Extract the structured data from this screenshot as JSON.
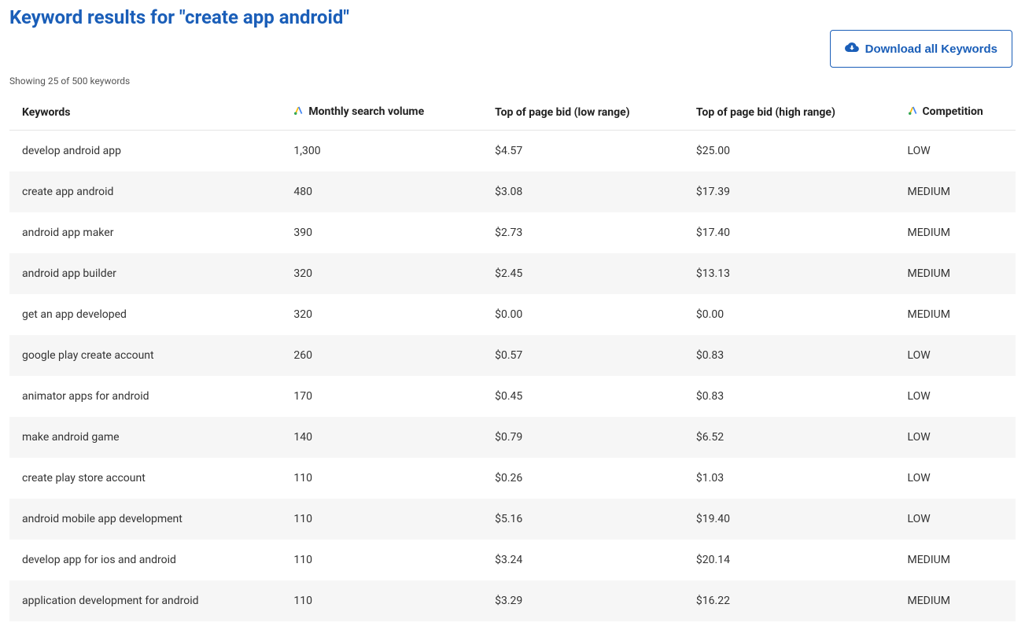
{
  "colors": {
    "primary": "#1a5eb8",
    "text": "#333333",
    "muted": "#555555",
    "row_alt_bg": "#f6f6f6",
    "border": "#e5e5e5",
    "ads_blue": "#4285f4",
    "ads_yellow": "#fbbc05",
    "ads_green": "#34a853"
  },
  "header": {
    "title": "Keyword results for \"create app android\"",
    "download_label": "Download all Keywords"
  },
  "summary": {
    "showing_text": "Showing 25 of 500 keywords"
  },
  "table": {
    "columns": {
      "keywords": "Keywords",
      "volume": "Monthly search volume",
      "low_bid": "Top of page bid (low range)",
      "high_bid": "Top of page bid (high range)",
      "competition": "Competition"
    },
    "rows": [
      {
        "keyword": "develop android app",
        "volume": "1,300",
        "low_bid": "$4.57",
        "high_bid": "$25.00",
        "competition": "LOW"
      },
      {
        "keyword": "create app android",
        "volume": "480",
        "low_bid": "$3.08",
        "high_bid": "$17.39",
        "competition": "MEDIUM"
      },
      {
        "keyword": "android app maker",
        "volume": "390",
        "low_bid": "$2.73",
        "high_bid": "$17.40",
        "competition": "MEDIUM"
      },
      {
        "keyword": "android app builder",
        "volume": "320",
        "low_bid": "$2.45",
        "high_bid": "$13.13",
        "competition": "MEDIUM"
      },
      {
        "keyword": "get an app developed",
        "volume": "320",
        "low_bid": "$0.00",
        "high_bid": "$0.00",
        "competition": "MEDIUM"
      },
      {
        "keyword": "google play create account",
        "volume": "260",
        "low_bid": "$0.57",
        "high_bid": "$0.83",
        "competition": "LOW"
      },
      {
        "keyword": "animator apps for android",
        "volume": "170",
        "low_bid": "$0.45",
        "high_bid": "$0.83",
        "competition": "LOW"
      },
      {
        "keyword": "make android game",
        "volume": "140",
        "low_bid": "$0.79",
        "high_bid": "$6.52",
        "competition": "LOW"
      },
      {
        "keyword": "create play store account",
        "volume": "110",
        "low_bid": "$0.26",
        "high_bid": "$1.03",
        "competition": "LOW"
      },
      {
        "keyword": "android mobile app development",
        "volume": "110",
        "low_bid": "$5.16",
        "high_bid": "$19.40",
        "competition": "LOW"
      },
      {
        "keyword": "develop app for ios and android",
        "volume": "110",
        "low_bid": "$3.24",
        "high_bid": "$20.14",
        "competition": "MEDIUM"
      },
      {
        "keyword": "application development for android",
        "volume": "110",
        "low_bid": "$3.29",
        "high_bid": "$16.22",
        "competition": "MEDIUM"
      }
    ]
  }
}
